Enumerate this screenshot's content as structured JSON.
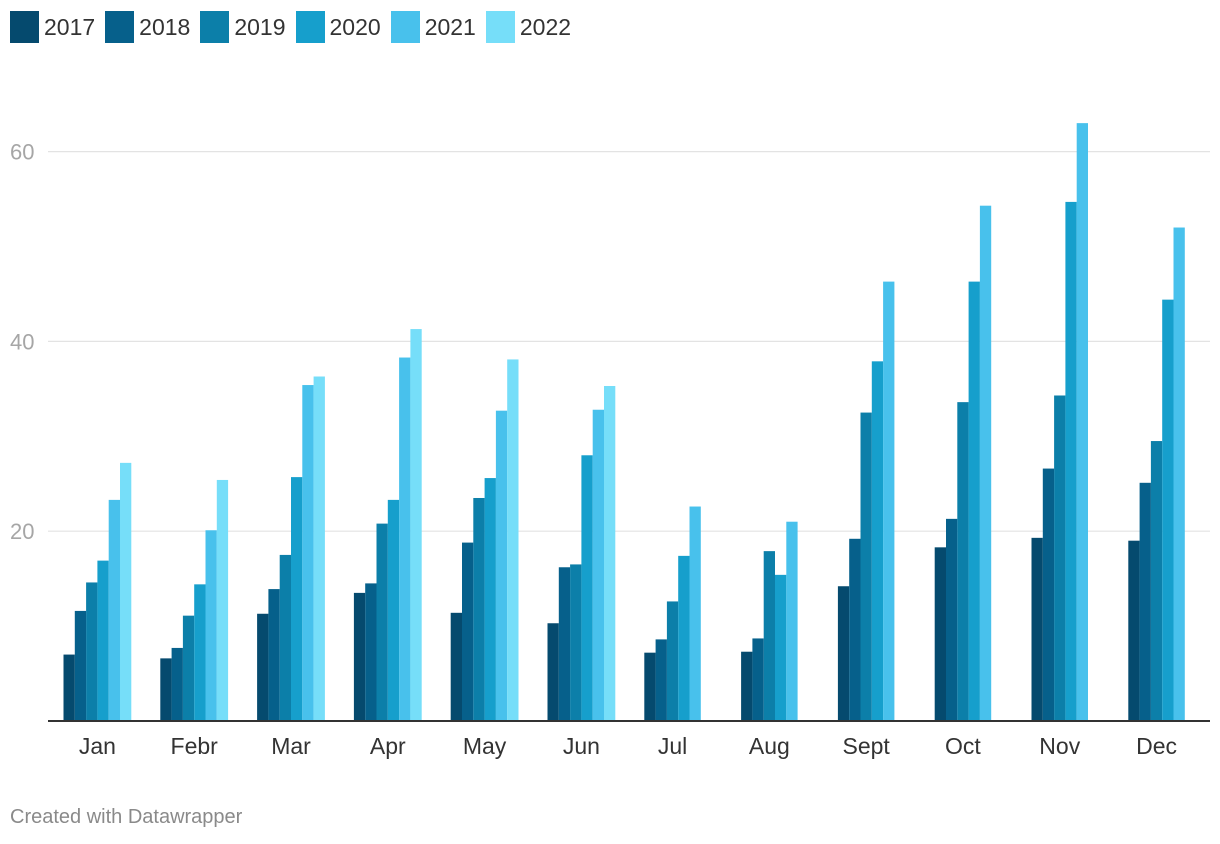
{
  "chart_data": {
    "type": "bar",
    "title": "",
    "xlabel": "",
    "ylabel": "",
    "categories": [
      "Jan",
      "Febr",
      "Mar",
      "Apr",
      "May",
      "Jun",
      "Jul",
      "Aug",
      "Sept",
      "Oct",
      "Nov",
      "Dec"
    ],
    "series": [
      {
        "name": "2017",
        "color": "#054a6e",
        "values": [
          7.0,
          6.6,
          11.3,
          13.5,
          11.4,
          10.3,
          7.2,
          7.3,
          14.2,
          18.3,
          19.3,
          19.0
        ]
      },
      {
        "name": "2018",
        "color": "#06608b",
        "values": [
          11.6,
          7.7,
          13.9,
          14.5,
          18.8,
          16.2,
          8.6,
          8.7,
          19.2,
          21.3,
          26.6,
          25.1
        ]
      },
      {
        "name": "2019",
        "color": "#0c7fa9",
        "values": [
          14.6,
          11.1,
          17.5,
          20.8,
          23.5,
          16.5,
          12.6,
          17.9,
          32.5,
          33.6,
          34.3,
          29.5
        ]
      },
      {
        "name": "2020",
        "color": "#169fcc",
        "values": [
          16.9,
          14.4,
          25.7,
          23.3,
          25.6,
          28.0,
          17.4,
          15.4,
          37.9,
          46.3,
          54.7,
          44.4
        ]
      },
      {
        "name": "2021",
        "color": "#48c1ec",
        "values": [
          23.3,
          20.1,
          35.4,
          38.3,
          32.7,
          32.8,
          22.6,
          21.0,
          46.3,
          54.3,
          63.0,
          52.0
        ]
      },
      {
        "name": "2022",
        "color": "#76def9",
        "values": [
          27.2,
          25.4,
          36.3,
          41.3,
          38.1,
          35.3,
          null,
          null,
          null,
          null,
          null,
          null
        ]
      }
    ],
    "ylim": [
      0,
      60
    ],
    "yticks": [
      20,
      40,
      60
    ],
    "grid": true,
    "legend_position": "top-left"
  },
  "footer": {
    "credit": "Created with Datawrapper"
  }
}
